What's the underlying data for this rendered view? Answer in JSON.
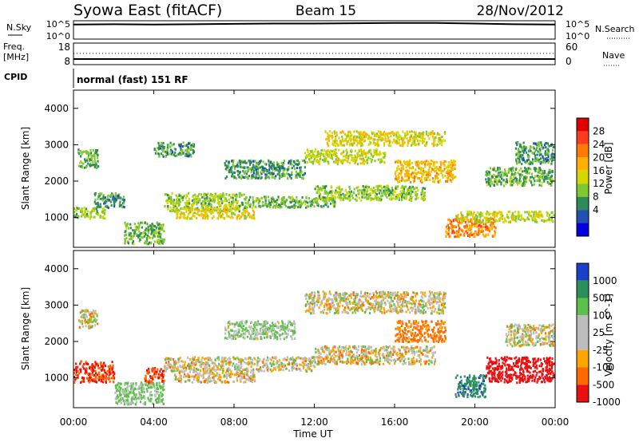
{
  "header": {
    "station": "Syowa East (fitACF)",
    "beam": "Beam 15",
    "date": "28/Nov/2012"
  },
  "panels": {
    "nsky": {
      "left_label": "N.Sky",
      "left_ticks": [
        "10^5",
        "10^0"
      ],
      "right_ticks": [
        "10^5",
        "10^0"
      ],
      "right_label": "N.Search"
    },
    "freq": {
      "left_label_top": "Freq.",
      "left_label_bottom": "[MHz]",
      "left_ticks": [
        "18",
        "8"
      ],
      "right_ticks": [
        "60",
        "0"
      ],
      "right_label": "Nave"
    },
    "cpid": {
      "label": "CPID",
      "program": "normal (fast) 151 RF"
    }
  },
  "axes": {
    "ylabel": "Slant Range [km]",
    "yticks": [
      "4000",
      "3000",
      "2000",
      "1000"
    ],
    "xticks": [
      "00:00",
      "04:00",
      "08:00",
      "12:00",
      "16:00",
      "20:00",
      "00:00"
    ],
    "xlabel": "Time UT"
  },
  "colorbars": {
    "power": {
      "label": "Power [dB]",
      "ticks": [
        "28",
        "24",
        "20",
        "16",
        "12",
        "8",
        "4"
      ],
      "colors": [
        "#e00000",
        "#ff3b1e",
        "#ff7a00",
        "#ffb000",
        "#d4d800",
        "#7fc830",
        "#2e8b57",
        "#2050b0",
        "#0000e0"
      ]
    },
    "velocity": {
      "label": "Velocity [m s^-1]",
      "ticks": [
        "1000",
        "500",
        "100",
        "25",
        "-25",
        "-100",
        "-500",
        "-1000"
      ],
      "colors": [
        "#1a3fc8",
        "#2b8f5b",
        "#5cc04a",
        "#bdbdbd",
        "#bdbdbd",
        "#ffa500",
        "#ff6a00",
        "#e81010"
      ]
    }
  },
  "chart_data": [
    {
      "type": "line",
      "name": "nsky_nsearch",
      "xlim": [
        0,
        24
      ],
      "x_units": "hours UT",
      "ylim_log10": [
        0,
        5
      ],
      "x": [
        0,
        2,
        4,
        6,
        8,
        10,
        12,
        14,
        16,
        18,
        20,
        22,
        24
      ],
      "values_log10": [
        4.1,
        4.2,
        4.1,
        4.2,
        4.3,
        4.4,
        4.4,
        4.5,
        4.6,
        4.6,
        4.4,
        4.2,
        4.1
      ]
    },
    {
      "type": "line",
      "name": "freq_nave",
      "xlim": [
        0,
        24
      ],
      "ylim": [
        8,
        18
      ],
      "x": [
        0,
        24
      ],
      "freq_values": [
        10.5,
        10.5
      ],
      "nave_values": [
        30,
        30
      ]
    },
    {
      "type": "heatmap",
      "name": "power",
      "xlim": [
        0,
        24
      ],
      "ylim": [
        180,
        4500
      ],
      "x_units": "hours UT",
      "y_units": "km",
      "clim": [
        0,
        30
      ],
      "bands": [
        {
          "t0": 0.0,
          "t1": 1.6,
          "r0": 1000,
          "r1": 1300,
          "v": 12
        },
        {
          "t0": 0.2,
          "t1": 1.2,
          "r0": 2400,
          "r1": 2900,
          "v": 10
        },
        {
          "t0": 1.0,
          "t1": 2.5,
          "r0": 1300,
          "r1": 1700,
          "v": 8
        },
        {
          "t0": 2.5,
          "t1": 4.5,
          "r0": 300,
          "r1": 900,
          "v": 10
        },
        {
          "t0": 4.0,
          "t1": 6.0,
          "r0": 2700,
          "r1": 3100,
          "v": 8
        },
        {
          "t0": 4.5,
          "t1": 8.5,
          "r0": 1200,
          "r1": 1700,
          "v": 12
        },
        {
          "t0": 5.0,
          "t1": 9.0,
          "r0": 1000,
          "r1": 1300,
          "v": 16
        },
        {
          "t0": 7.5,
          "t1": 11.5,
          "r0": 2100,
          "r1": 2600,
          "v": 8
        },
        {
          "t0": 8.5,
          "t1": 13.0,
          "r0": 1300,
          "r1": 1600,
          "v": 10
        },
        {
          "t0": 11.5,
          "t1": 15.5,
          "r0": 2500,
          "r1": 2900,
          "v": 14
        },
        {
          "t0": 12.5,
          "t1": 18.5,
          "r0": 3000,
          "r1": 3400,
          "v": 16
        },
        {
          "t0": 12.0,
          "t1": 17.5,
          "r0": 1500,
          "r1": 1900,
          "v": 12
        },
        {
          "t0": 16.0,
          "t1": 19.0,
          "r0": 2000,
          "r1": 2600,
          "v": 18
        },
        {
          "t0": 18.5,
          "t1": 21.0,
          "r0": 500,
          "r1": 1000,
          "v": 22
        },
        {
          "t0": 19.0,
          "t1": 24.0,
          "r0": 900,
          "r1": 1200,
          "v": 14
        },
        {
          "t0": 20.5,
          "t1": 24.0,
          "r0": 1900,
          "r1": 2400,
          "v": 10
        },
        {
          "t0": 22.0,
          "t1": 24.0,
          "r0": 2500,
          "r1": 3100,
          "v": 8
        }
      ]
    },
    {
      "type": "heatmap",
      "name": "velocity",
      "xlim": [
        0,
        24
      ],
      "ylim": [
        180,
        4500
      ],
      "x_units": "hours UT",
      "y_units": "km",
      "clim": [
        -1000,
        1000
      ],
      "bands": [
        {
          "t0": 0.0,
          "t1": 2.0,
          "r0": 900,
          "r1": 1500,
          "v": -500
        },
        {
          "t0": 0.2,
          "t1": 1.2,
          "r0": 2400,
          "r1": 2900,
          "v": 20
        },
        {
          "t0": 2.0,
          "t1": 4.5,
          "r0": 300,
          "r1": 900,
          "v": 150
        },
        {
          "t0": 3.5,
          "t1": 4.5,
          "r0": 900,
          "r1": 1300,
          "v": -500
        },
        {
          "t0": 4.5,
          "t1": 12.0,
          "r0": 1200,
          "r1": 1600,
          "v": 10
        },
        {
          "t0": 5.0,
          "t1": 9.0,
          "r0": 900,
          "r1": 1200,
          "v": -20
        },
        {
          "t0": 7.5,
          "t1": 11.0,
          "r0": 2100,
          "r1": 2600,
          "v": 120
        },
        {
          "t0": 11.5,
          "t1": 18.5,
          "r0": 2800,
          "r1": 3400,
          "v": 15
        },
        {
          "t0": 12.0,
          "t1": 18.0,
          "r0": 1400,
          "r1": 1900,
          "v": 0
        },
        {
          "t0": 16.0,
          "t1": 18.5,
          "r0": 2000,
          "r1": 2600,
          "v": -150
        },
        {
          "t0": 19.0,
          "t1": 20.5,
          "r0": 500,
          "r1": 1100,
          "v": 900
        },
        {
          "t0": 20.5,
          "t1": 24.0,
          "r0": 900,
          "r1": 1600,
          "v": -800
        },
        {
          "t0": 21.5,
          "t1": 24.0,
          "r0": 1900,
          "r1": 2500,
          "v": 20
        }
      ]
    }
  ]
}
